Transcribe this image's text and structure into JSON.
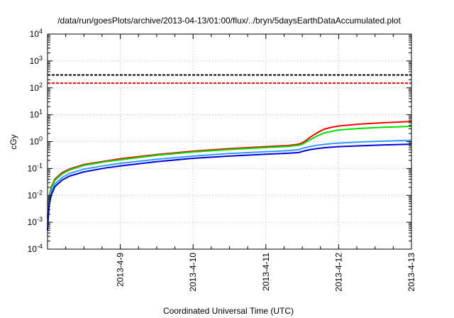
{
  "chart_data": {
    "type": "line",
    "title": "/data/run/goesPlots/archive/2013-04-13/01:00/flux/../bryn/5daysEarthDataAccumulated.plot",
    "xlabel": "Coordinated Universal Time (UTC)",
    "ylabel": "cGy",
    "yscale": "log",
    "ylim": [
      0.0001,
      10000
    ],
    "xlim": [
      0,
      5
    ],
    "grid": true,
    "x_ticks": [
      {
        "value": 1,
        "label": "2013-4-9"
      },
      {
        "value": 2,
        "label": "2013-4-10"
      },
      {
        "value": 3,
        "label": "2013-4-11"
      },
      {
        "value": 4,
        "label": "2013-4-12"
      },
      {
        "value": 5,
        "label": "2013-4-13"
      }
    ],
    "y_ticks": [
      {
        "value": 0.0001,
        "base": "10",
        "exp": "-4"
      },
      {
        "value": 0.001,
        "base": "10",
        "exp": "-3"
      },
      {
        "value": 0.01,
        "base": "10",
        "exp": "-2"
      },
      {
        "value": 0.1,
        "base": "10",
        "exp": "-1"
      },
      {
        "value": 1,
        "base": "10",
        "exp": "0"
      },
      {
        "value": 10,
        "base": "10",
        "exp": "1"
      },
      {
        "value": 100,
        "base": "10",
        "exp": "2"
      },
      {
        "value": 1000,
        "base": "10",
        "exp": "3"
      },
      {
        "value": 10000,
        "base": "10",
        "exp": "4"
      }
    ],
    "thresholds": [
      {
        "value": 300,
        "color": "#000000",
        "dash": true
      },
      {
        "value": 150,
        "color": "#ff0000",
        "dash": true
      }
    ],
    "series": [
      {
        "color": "#ff0000",
        "x": [
          0,
          0.02,
          0.05,
          0.1,
          0.2,
          0.3,
          0.5,
          0.8,
          1.0,
          1.5,
          2.0,
          2.5,
          3.0,
          3.3,
          3.45,
          3.5,
          3.55,
          3.6,
          3.7,
          3.8,
          3.9,
          4.0,
          4.3,
          4.6,
          5.0
        ],
        "y": [
          0.0015,
          0.008,
          0.02,
          0.04,
          0.07,
          0.095,
          0.14,
          0.19,
          0.23,
          0.33,
          0.44,
          0.55,
          0.65,
          0.71,
          0.8,
          0.9,
          1.1,
          1.4,
          2.1,
          2.9,
          3.4,
          3.8,
          4.5,
          5.0,
          5.6
        ]
      },
      {
        "color": "#00dd00",
        "x": [
          0,
          0.02,
          0.05,
          0.1,
          0.2,
          0.3,
          0.5,
          0.8,
          1.0,
          1.5,
          2.0,
          2.5,
          3.0,
          3.3,
          3.45,
          3.5,
          3.55,
          3.6,
          3.7,
          3.8,
          3.9,
          4.0,
          4.3,
          4.6,
          5.0
        ],
        "y": [
          0.0013,
          0.007,
          0.018,
          0.036,
          0.063,
          0.088,
          0.13,
          0.18,
          0.21,
          0.31,
          0.41,
          0.51,
          0.6,
          0.66,
          0.73,
          0.8,
          0.95,
          1.15,
          1.6,
          2.1,
          2.4,
          2.7,
          3.1,
          3.4,
          3.7
        ]
      },
      {
        "color": "#3399ff",
        "x": [
          0,
          0.02,
          0.05,
          0.1,
          0.2,
          0.3,
          0.5,
          0.8,
          1.0,
          1.5,
          2.0,
          2.5,
          3.0,
          3.3,
          3.45,
          3.5,
          3.6,
          3.7,
          3.8,
          3.9,
          4.0,
          4.3,
          4.6,
          5.0
        ],
        "y": [
          0.0008,
          0.005,
          0.013,
          0.026,
          0.046,
          0.065,
          0.095,
          0.13,
          0.155,
          0.22,
          0.29,
          0.36,
          0.42,
          0.46,
          0.5,
          0.56,
          0.65,
          0.73,
          0.79,
          0.84,
          0.88,
          0.97,
          1.04,
          1.12
        ]
      },
      {
        "color": "#0000dd",
        "x": [
          0,
          0.02,
          0.05,
          0.1,
          0.2,
          0.3,
          0.5,
          0.8,
          1.0,
          1.5,
          2.0,
          2.5,
          3.0,
          3.3,
          3.45,
          3.5,
          3.6,
          3.7,
          3.8,
          3.9,
          4.0,
          4.3,
          4.6,
          5.0
        ],
        "y": [
          0.0005,
          0.004,
          0.01,
          0.021,
          0.037,
          0.052,
          0.075,
          0.105,
          0.125,
          0.18,
          0.24,
          0.29,
          0.34,
          0.37,
          0.39,
          0.43,
          0.5,
          0.55,
          0.59,
          0.62,
          0.65,
          0.7,
          0.75,
          0.8
        ]
      }
    ]
  }
}
